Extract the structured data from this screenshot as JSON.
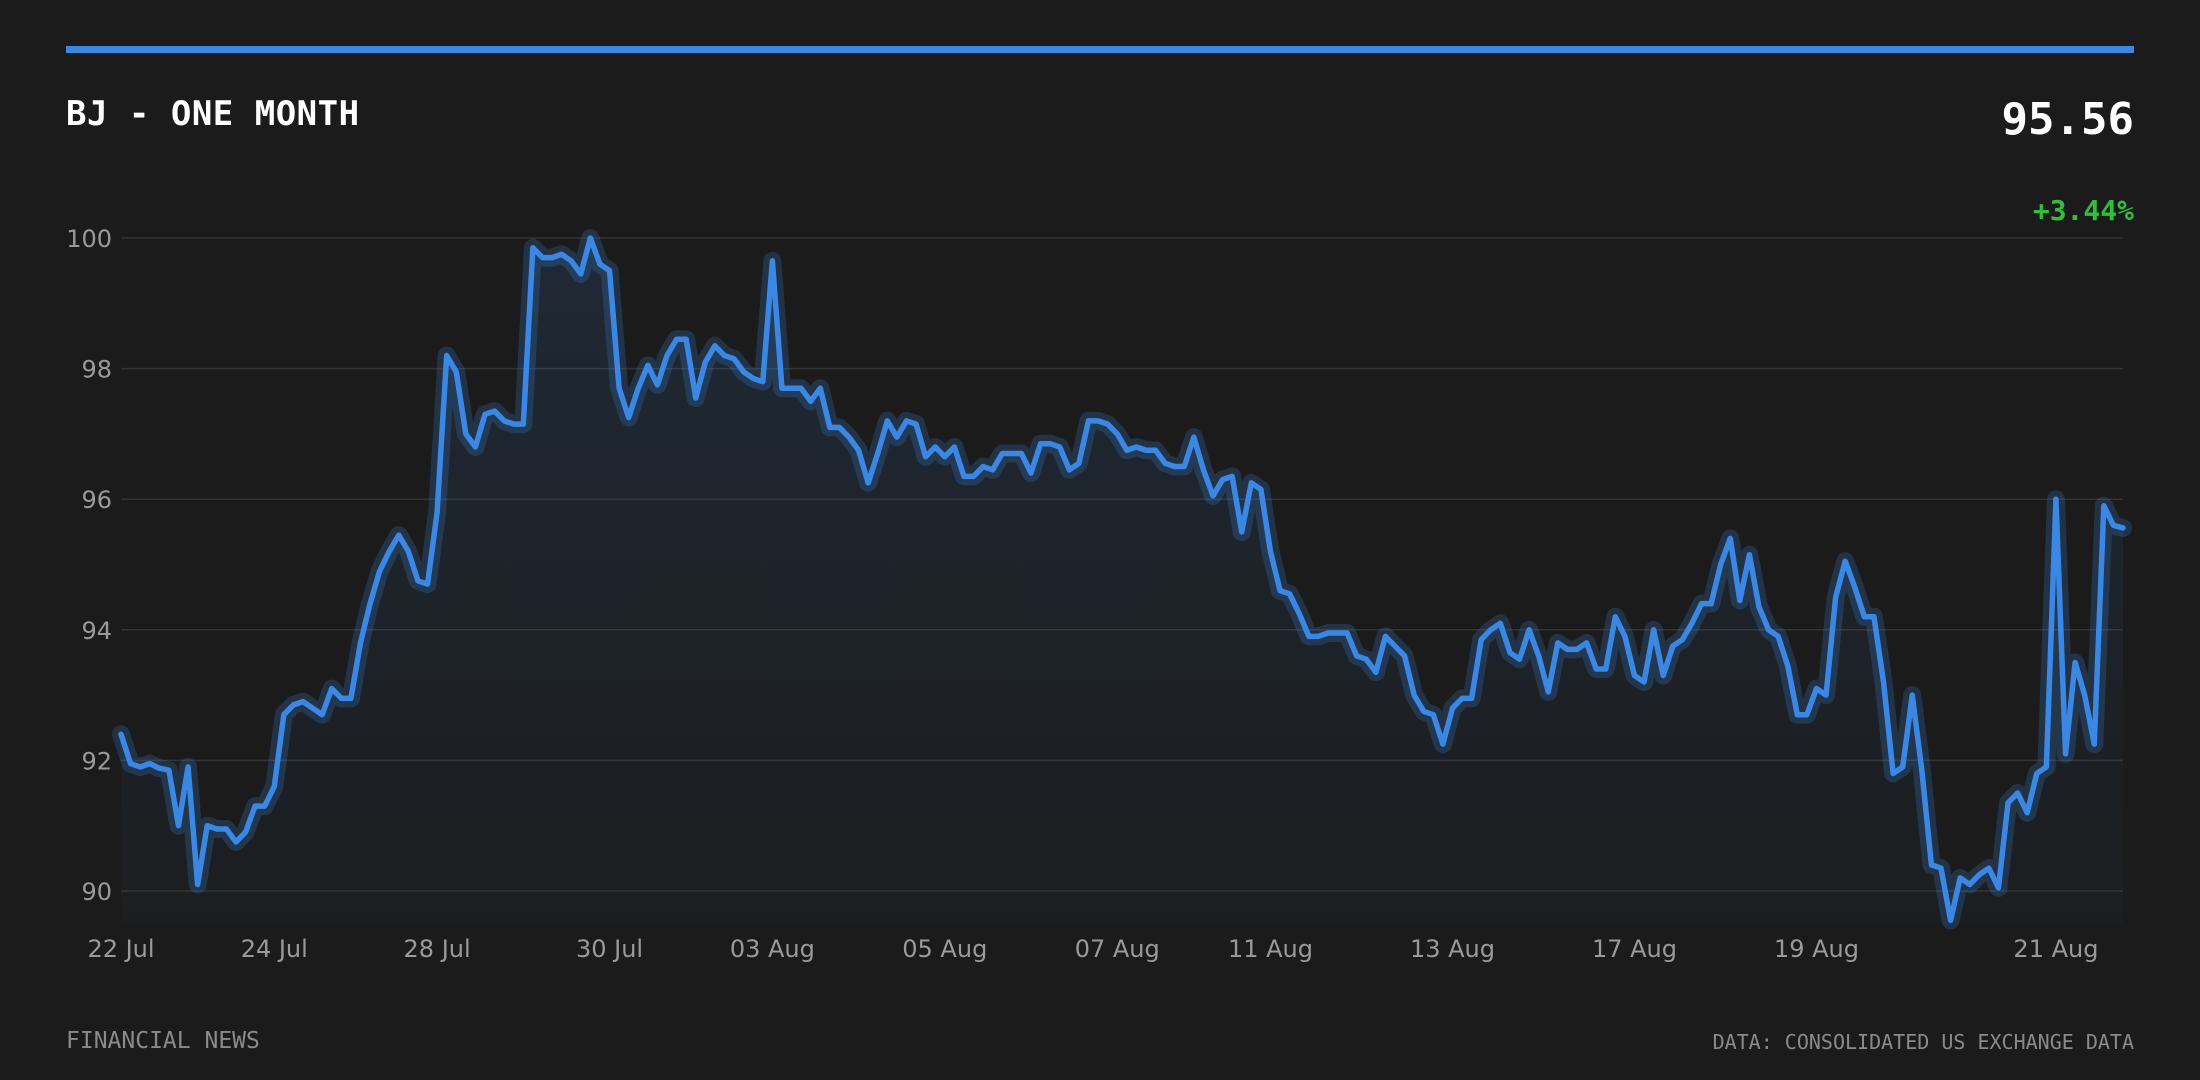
{
  "header": {
    "title": "BJ - ONE MONTH",
    "price": "95.56",
    "change": "+3.44%"
  },
  "footer": {
    "source_left": "FINANCIAL NEWS",
    "source_right": "DATA: CONSOLIDATED US EXCHANGE DATA"
  },
  "colors": {
    "background": "#1b1b1b",
    "accent": "#3b87e4",
    "positive": "#2fbf3a",
    "grid": "#333333",
    "tick": "#9a9a9a"
  },
  "chart_data": {
    "type": "area",
    "title": "BJ - ONE MONTH",
    "ylim": [
      89.5,
      100.5
    ],
    "yticks": [
      90,
      92,
      94,
      96,
      98,
      100
    ],
    "grid": true,
    "xtick_labels": [
      {
        "label": "22 Jul",
        "index": 0
      },
      {
        "label": "24 Jul",
        "index": 16
      },
      {
        "label": "28 Jul",
        "index": 33
      },
      {
        "label": "30 Jul",
        "index": 51
      },
      {
        "label": "03 Aug",
        "index": 68
      },
      {
        "label": "05 Aug",
        "index": 86
      },
      {
        "label": "07 Aug",
        "index": 104
      },
      {
        "label": "11 Aug",
        "index": 120
      },
      {
        "label": "13 Aug",
        "index": 139
      },
      {
        "label": "17 Aug",
        "index": 158
      },
      {
        "label": "19 Aug",
        "index": 177
      },
      {
        "label": "21 Aug",
        "index": 202
      }
    ],
    "series": [
      {
        "values": [
          92.4,
          91.95,
          91.9,
          91.95,
          91.88,
          91.85,
          91.0,
          91.9,
          90.1,
          91.0,
          90.95,
          90.95,
          90.75,
          90.9,
          91.3,
          91.3,
          91.6,
          92.7,
          92.85,
          92.9,
          92.8,
          92.7,
          93.1,
          92.95,
          92.95,
          93.8,
          94.4,
          94.9,
          95.2,
          95.45,
          95.2,
          94.75,
          94.7,
          95.8,
          98.2,
          97.95,
          97.0,
          96.8,
          97.3,
          97.35,
          97.2,
          97.15,
          97.15,
          99.85,
          99.7,
          99.7,
          99.75,
          99.65,
          99.45,
          100.0,
          99.6,
          99.5,
          97.7,
          97.25,
          97.7,
          98.05,
          97.75,
          98.2,
          98.45,
          98.45,
          97.55,
          98.1,
          98.35,
          98.2,
          98.15,
          97.95,
          97.85,
          97.8,
          99.65,
          97.7,
          97.7,
          97.7,
          97.5,
          97.7,
          97.1,
          97.1,
          96.95,
          96.75,
          96.25,
          96.7,
          97.2,
          96.95,
          97.2,
          97.15,
          96.65,
          96.8,
          96.65,
          96.8,
          96.35,
          96.35,
          96.5,
          96.45,
          96.7,
          96.7,
          96.7,
          96.4,
          96.85,
          96.85,
          96.8,
          96.45,
          96.55,
          97.2,
          97.2,
          97.15,
          97.0,
          96.75,
          96.8,
          96.75,
          96.75,
          96.55,
          96.5,
          96.5,
          96.95,
          96.45,
          96.05,
          96.3,
          96.35,
          95.5,
          96.25,
          96.15,
          95.2,
          94.6,
          94.55,
          94.25,
          93.9,
          93.9,
          93.95,
          93.95,
          93.95,
          93.6,
          93.55,
          93.35,
          93.9,
          93.75,
          93.6,
          93.0,
          92.75,
          92.7,
          92.25,
          92.8,
          92.95,
          92.95,
          93.85,
          94.0,
          94.1,
          93.65,
          93.55,
          94.0,
          93.6,
          93.05,
          93.8,
          93.7,
          93.7,
          93.8,
          93.4,
          93.4,
          94.2,
          93.9,
          93.3,
          93.2,
          94.0,
          93.3,
          93.75,
          93.85,
          94.1,
          94.4,
          94.4,
          95.0,
          95.4,
          94.45,
          95.15,
          94.35,
          94.0,
          93.9,
          93.45,
          92.7,
          92.7,
          93.1,
          93.0,
          94.5,
          95.05,
          94.65,
          94.2,
          94.2,
          93.2,
          91.8,
          91.9,
          93.0,
          91.85,
          90.4,
          90.35,
          89.55,
          90.2,
          90.1,
          90.25,
          90.35,
          90.05,
          91.35,
          91.5,
          91.2,
          91.8,
          91.9,
          96.0,
          92.1,
          93.5,
          93.0,
          92.25,
          95.9,
          95.6,
          95.56
        ]
      }
    ]
  }
}
